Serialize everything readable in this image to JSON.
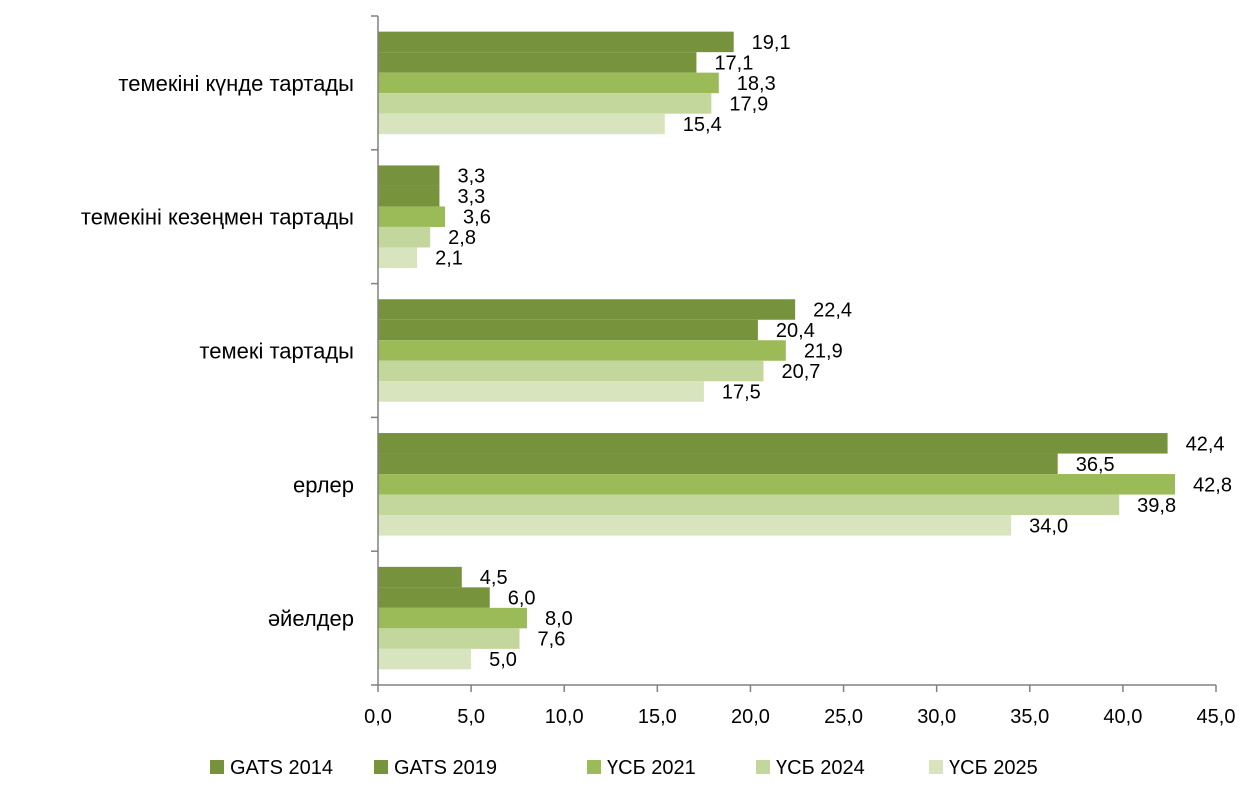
{
  "chart_data": {
    "type": "bar",
    "orientation": "horizontal",
    "title": "",
    "xlabel": "",
    "ylabel": "",
    "xlim": [
      0,
      45
    ],
    "x_ticks": [
      0,
      5,
      10,
      15,
      20,
      25,
      30,
      35,
      40,
      45
    ],
    "x_tick_labels": [
      "0,0",
      "5,0",
      "10,0",
      "15,0",
      "20,0",
      "25,0",
      "30,0",
      "35,0",
      "40,0",
      "45,0"
    ],
    "grid": false,
    "legend_position": "bottom",
    "categories": [
      "темекіні күнде тартады",
      "темекіні кезеңмен тартады",
      "темекі тартады",
      "ерлер",
      "әйелдер"
    ],
    "series": [
      {
        "name": "GATS 2014",
        "color": "#76923c",
        "values": [
          19.1,
          3.3,
          22.4,
          42.4,
          4.5
        ],
        "labels": [
          "19,1",
          "3,3",
          "22,4",
          "42,4",
          "4,5"
        ]
      },
      {
        "name": "GATS 2019",
        "color": "#77933c",
        "values": [
          17.1,
          3.3,
          20.4,
          36.5,
          6.0
        ],
        "labels": [
          "17,1",
          "3,3",
          "20,4",
          "36,5",
          "6,0"
        ]
      },
      {
        "name": "ҮСБ 2021",
        "color": "#9bbb59",
        "values": [
          18.3,
          3.6,
          21.9,
          42.8,
          8.0
        ],
        "labels": [
          "18,3",
          "3,6",
          "21,9",
          "42,8",
          "8,0"
        ]
      },
      {
        "name": "ҮСБ 2024",
        "color": "#c3d69b",
        "values": [
          17.9,
          2.8,
          20.7,
          39.8,
          7.6
        ],
        "labels": [
          "17,9",
          "2,8",
          "20,7",
          "39,8",
          "7,6"
        ]
      },
      {
        "name": "ҮСБ 2025",
        "color": "#d7e4bd",
        "values": [
          15.4,
          2.1,
          17.5,
          34.0,
          5.0
        ],
        "labels": [
          "15,4",
          "2,1",
          "17,5",
          "34,0",
          "5,0"
        ]
      }
    ]
  }
}
